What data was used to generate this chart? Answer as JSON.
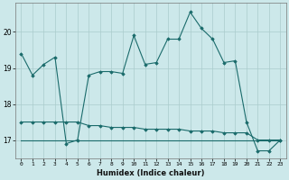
{
  "xlabel": "Humidex (Indice chaleur)",
  "bg_color": "#cce8ea",
  "grid_color": "#aacccc",
  "line_color": "#1a6b6b",
  "x_values": [
    0,
    1,
    2,
    3,
    4,
    5,
    6,
    7,
    8,
    9,
    10,
    11,
    12,
    13,
    14,
    15,
    16,
    17,
    18,
    19,
    20,
    21,
    22,
    23
  ],
  "series1": [
    19.4,
    18.8,
    19.1,
    19.3,
    16.9,
    17.0,
    18.8,
    18.9,
    18.9,
    18.85,
    19.9,
    19.1,
    19.15,
    19.8,
    19.8,
    20.55,
    20.1,
    19.8,
    19.15,
    19.2,
    17.5,
    16.7,
    16.7,
    17.0
  ],
  "series2": [
    17.5,
    17.5,
    17.5,
    17.5,
    17.5,
    17.5,
    17.4,
    17.4,
    17.35,
    17.35,
    17.35,
    17.3,
    17.3,
    17.3,
    17.3,
    17.25,
    17.25,
    17.25,
    17.2,
    17.2,
    17.2,
    17.0,
    17.0,
    17.0
  ],
  "series3": [
    17.0,
    17.0,
    17.0,
    17.0,
    17.0,
    17.0,
    17.0,
    17.0,
    17.0,
    17.0,
    17.0,
    17.0,
    17.0,
    17.0,
    17.0,
    17.0,
    17.0,
    17.0,
    17.0,
    17.0,
    17.0,
    17.0,
    17.0,
    17.0
  ],
  "ylim": [
    16.5,
    20.8
  ],
  "yticks": [
    17,
    18,
    19,
    20
  ],
  "xlim": [
    -0.5,
    23.5
  ]
}
